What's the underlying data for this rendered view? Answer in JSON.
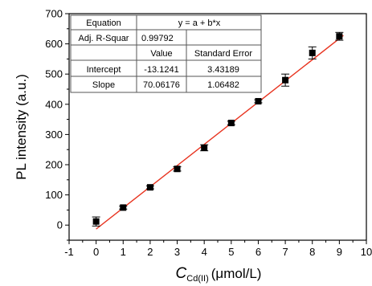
{
  "chart_data": {
    "type": "scatter",
    "xlabel_symbol": "C",
    "xlabel_subscript": "Cd(II)",
    "xlabel_unit": "(μmol/L)",
    "ylabel": "PL intensity (a.u.)",
    "xlim": [
      -1,
      10
    ],
    "ylim": [
      -50,
      700
    ],
    "x_ticks": [
      "-1",
      "0",
      "1",
      "2",
      "3",
      "4",
      "5",
      "6",
      "7",
      "8",
      "9",
      "10"
    ],
    "y_ticks": [
      "0",
      "100",
      "200",
      "300",
      "400",
      "500",
      "600",
      "700"
    ],
    "grid": false,
    "points": [
      {
        "x": 0,
        "y": 12,
        "err": 15
      },
      {
        "x": 1,
        "y": 58,
        "err": 5
      },
      {
        "x": 2,
        "y": 125,
        "err": 5
      },
      {
        "x": 3,
        "y": 186,
        "err": 7
      },
      {
        "x": 4,
        "y": 256,
        "err": 10
      },
      {
        "x": 5,
        "y": 338,
        "err": 6
      },
      {
        "x": 6,
        "y": 410,
        "err": 5
      },
      {
        "x": 7,
        "y": 480,
        "err": 20
      },
      {
        "x": 8,
        "y": 570,
        "err": 20
      },
      {
        "x": 9,
        "y": 625,
        "err": 13
      }
    ],
    "fit": {
      "intercept": -13.1241,
      "slope": 70.06176,
      "color": "#e8331f"
    },
    "point_color": "#000000",
    "table": {
      "equation_label": "Equation",
      "equation": "y = a + b*x",
      "r2_label": "Adj. R-Squar",
      "r2_value": "0.99792",
      "value_header": "Value",
      "stderr_header": "Standard Error",
      "rows": [
        {
          "label": "Intercept",
          "value": "-13.1241",
          "stderr": "3.43189"
        },
        {
          "label": "Slope",
          "value": "70.06176",
          "stderr": "1.06482"
        }
      ]
    }
  }
}
